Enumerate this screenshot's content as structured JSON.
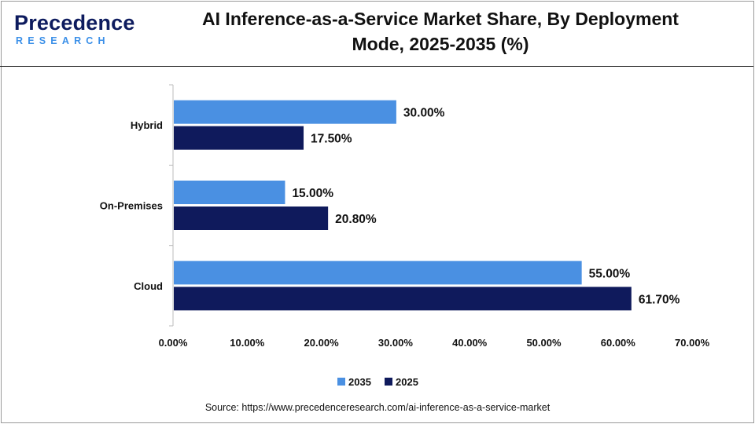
{
  "header": {
    "logo_main": "Precedence",
    "logo_sub": "RESEARCH",
    "title_line1": "AI Inference-as-a-Service Market Share, By Deployment",
    "title_line2": "Mode, 2025-2035 (%)"
  },
  "colors": {
    "series_2035": "#4a90e2",
    "series_2025": "#0f1a5c",
    "logo_dark": "#0d1b5e",
    "logo_light": "#3a8fe8"
  },
  "chart_data": {
    "type": "bar",
    "orientation": "horizontal",
    "title": "AI Inference-as-a-Service Market Share, By Deployment Mode, 2025-2035 (%)",
    "categories": [
      "Hybrid",
      "On-Premises",
      "Cloud"
    ],
    "series": [
      {
        "name": "2035",
        "values": [
          30.0,
          15.0,
          55.0
        ],
        "labels": [
          "30.00%",
          "15.00%",
          "55.00%"
        ]
      },
      {
        "name": "2025",
        "values": [
          17.5,
          20.8,
          61.7
        ],
        "labels": [
          "17.50%",
          "20.80%",
          "61.70%"
        ]
      }
    ],
    "x_ticks": [
      "0.00%",
      "10.00%",
      "20.00%",
      "30.00%",
      "40.00%",
      "50.00%",
      "60.00%",
      "70.00%"
    ],
    "xlim": [
      0,
      70
    ],
    "grid": false,
    "legend_position": "bottom-center"
  },
  "source": "Source: https://www.precedenceresearch.com/ai-inference-as-a-service-market"
}
